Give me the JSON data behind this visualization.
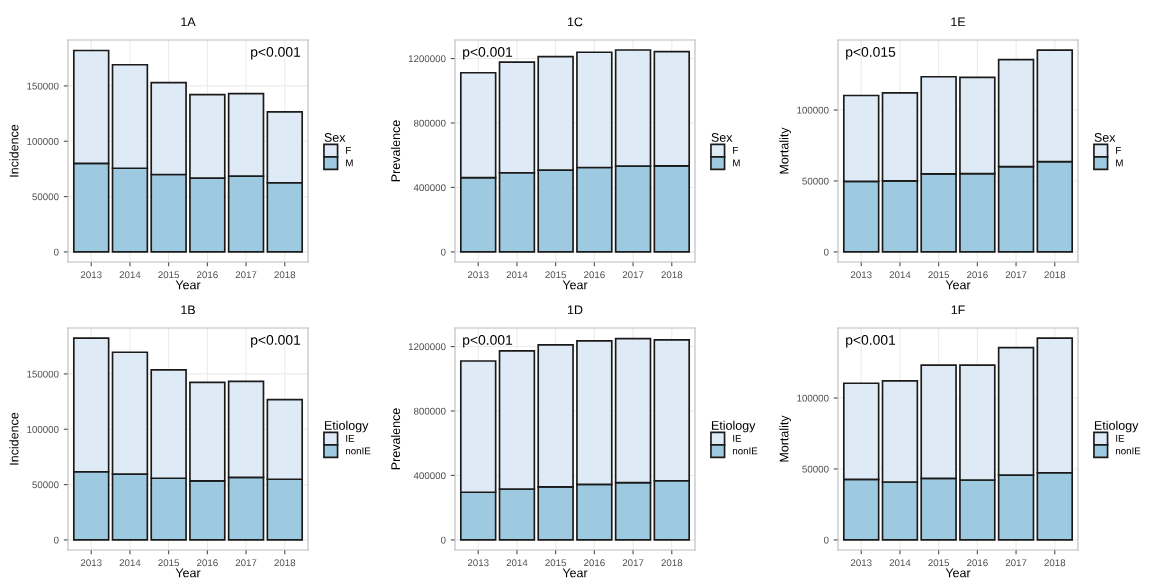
{
  "chart_data": [
    {
      "type": "bar",
      "stacked": true,
      "title": "1A",
      "xlabel": "Year",
      "ylabel": "Incidence",
      "legend_title": "Sex",
      "legend": "right",
      "grid": true,
      "categories": [
        "2013",
        "2014",
        "2015",
        "2016",
        "2017",
        "2018"
      ],
      "ylim": [
        -9100,
        191500
      ],
      "yticks": [
        0,
        50000,
        100000,
        150000
      ],
      "annotations": [
        "p<0.001"
      ],
      "series": [
        {
          "name": "M",
          "color": "#9ecae1",
          "values": [
            80000,
            75600,
            70000,
            66700,
            68500,
            62500
          ]
        },
        {
          "name": "F",
          "color": "#deebf7",
          "values": [
            102000,
            93500,
            83000,
            75500,
            74500,
            64000
          ]
        }
      ]
    },
    {
      "type": "bar",
      "stacked": true,
      "title": "1C",
      "xlabel": "Year",
      "ylabel": "Prevalence",
      "legend_title": "Sex",
      "legend": "right",
      "grid": true,
      "categories": [
        "2013",
        "2014",
        "2015",
        "2016",
        "2017",
        "2018"
      ],
      "ylim": [
        -62600,
        1315000
      ],
      "yticks": [
        0,
        400000,
        800000,
        1200000
      ],
      "annotations": [
        "p<0.001"
      ],
      "series": [
        {
          "name": "M",
          "color": "#9ecae1",
          "values": [
            461000,
            491000,
            508000,
            524000,
            532000,
            534000
          ]
        },
        {
          "name": "F",
          "color": "#deebf7",
          "values": [
            651000,
            687000,
            704000,
            715000,
            721000,
            709000
          ]
        }
      ]
    },
    {
      "type": "bar",
      "stacked": true,
      "title": "1E",
      "xlabel": "Year",
      "ylabel": "Mortality",
      "legend_title": "Sex",
      "legend": "right",
      "grid": true,
      "categories": [
        "2013",
        "2014",
        "2015",
        "2016",
        "2017",
        "2018"
      ],
      "ylim": [
        -7100,
        149300
      ],
      "yticks": [
        0,
        50000,
        100000
      ],
      "annotations": [
        "p<0.015"
      ],
      "series": [
        {
          "name": "M",
          "color": "#9ecae1",
          "values": [
            49700,
            50100,
            55000,
            55200,
            60100,
            63600
          ]
        },
        {
          "name": "F",
          "color": "#deebf7",
          "values": [
            60500,
            61900,
            68400,
            67800,
            75400,
            78600
          ]
        }
      ]
    },
    {
      "type": "bar",
      "stacked": true,
      "title": "1B",
      "xlabel": "Year",
      "ylabel": "Incidence",
      "legend_title": "Etiology",
      "legend": "right",
      "grid": true,
      "categories": [
        "2013",
        "2014",
        "2015",
        "2016",
        "2017",
        "2018"
      ],
      "ylim": [
        -9100,
        191500
      ],
      "yticks": [
        0,
        50000,
        100000,
        150000
      ],
      "annotations": [
        "p<0.001"
      ],
      "series": [
        {
          "name": "nonIE",
          "color": "#9ecae1",
          "values": [
            61600,
            59500,
            55700,
            53300,
            56500,
            54800
          ]
        },
        {
          "name": "IE",
          "color": "#deebf7",
          "values": [
            120800,
            110100,
            97900,
            89000,
            86700,
            72000
          ]
        }
      ]
    },
    {
      "type": "bar",
      "stacked": true,
      "title": "1D",
      "xlabel": "Year",
      "ylabel": "Prevalence",
      "legend_title": "Etiology",
      "legend": "right",
      "grid": true,
      "categories": [
        "2013",
        "2014",
        "2015",
        "2016",
        "2017",
        "2018"
      ],
      "ylim": [
        -62600,
        1315000
      ],
      "yticks": [
        0,
        400000,
        800000,
        1200000
      ],
      "annotations": [
        "p<0.001"
      ],
      "series": [
        {
          "name": "nonIE",
          "color": "#9ecae1",
          "values": [
            296000,
            316000,
            329000,
            345000,
            355000,
            367000
          ]
        },
        {
          "name": "IE",
          "color": "#deebf7",
          "values": [
            814000,
            857000,
            881000,
            890000,
            894000,
            874000
          ]
        }
      ]
    },
    {
      "type": "bar",
      "stacked": true,
      "title": "1F",
      "xlabel": "Year",
      "ylabel": "Mortality",
      "legend_title": "Etiology",
      "legend": "right",
      "grid": true,
      "categories": [
        "2013",
        "2014",
        "2015",
        "2016",
        "2017",
        "2018"
      ],
      "ylim": [
        -7100,
        149300
      ],
      "yticks": [
        0,
        50000,
        100000
      ],
      "annotations": [
        "p<0.001"
      ],
      "series": [
        {
          "name": "nonIE",
          "color": "#9ecae1",
          "values": [
            42700,
            40800,
            43400,
            42200,
            45700,
            47300
          ]
        },
        {
          "name": "IE",
          "color": "#deebf7",
          "values": [
            67700,
            71200,
            79800,
            81000,
            89800,
            94900
          ]
        }
      ]
    }
  ]
}
